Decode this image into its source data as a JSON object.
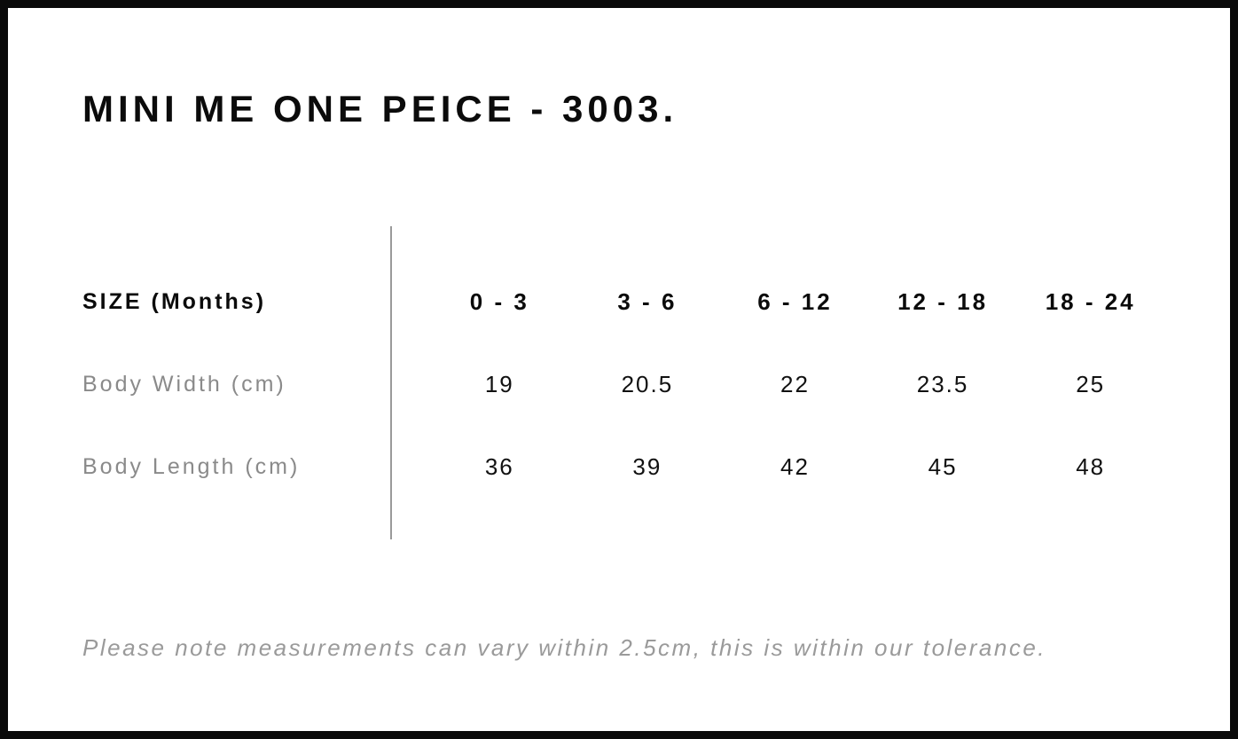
{
  "page": {
    "title": "MINI ME ONE PEICE - 3003."
  },
  "size_chart": {
    "header_label": "SIZE (Months)",
    "columns": [
      "0 - 3",
      "3 - 6",
      "6 - 12",
      "12 - 18",
      "18 - 24"
    ],
    "rows": [
      {
        "label": "Body Width (cm)",
        "values": [
          "19",
          "20.5",
          "22",
          "23.5",
          "25"
        ]
      },
      {
        "label": "Body Length (cm)",
        "values": [
          "36",
          "39",
          "42",
          "45",
          "48"
        ]
      }
    ]
  },
  "footnote": "Please note measurements can vary within 2.5cm, this is within our tolerance.",
  "colors": {
    "background": "#ffffff",
    "frame_border": "#0a0a0a",
    "heading_text": "#0b0b0b",
    "value_text": "#111111",
    "muted_label_text": "#8a8a8a",
    "footnote_text": "#9a9a9a",
    "divider_line": "#9a9a9a"
  }
}
